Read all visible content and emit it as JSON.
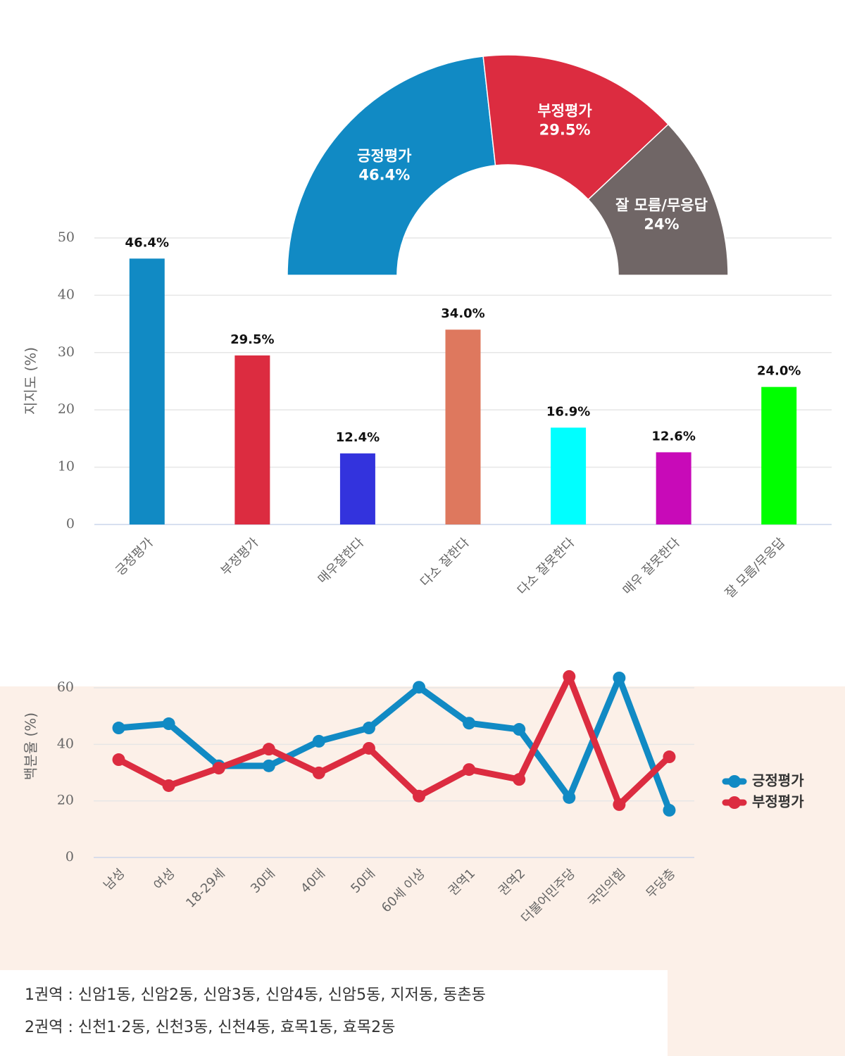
{
  "chart_data": [
    {
      "type": "pie",
      "categories": [
        "긍정평가",
        "부정평가",
        "잘 모름/무응답"
      ],
      "values": [
        46.4,
        29.5,
        24
      ],
      "value_labels": [
        "46.4%",
        "29.5%",
        "24%"
      ],
      "colors": [
        "#118ac4",
        "#dc2c40",
        "#706666"
      ]
    },
    {
      "type": "bar",
      "y_label": "지지도 (%)",
      "categories": [
        "긍정평가",
        "부정평가",
        "매우잘한다",
        "다소 잘한다",
        "다소 잘못한다",
        "매우 잘못한다",
        "잘 모름/무응답"
      ],
      "values": [
        46.4,
        29.5,
        12.4,
        34.0,
        16.9,
        12.6,
        24.0
      ],
      "value_labels": [
        "46.4%",
        "29.5%",
        "12.4%",
        "34.0%",
        "16.9%",
        "12.6%",
        "24.0%"
      ],
      "colors": [
        "#118ac4",
        "#dc2c40",
        "#3333dd",
        "#de785e",
        "#00ffff",
        "#c80ab8",
        "#00ff00"
      ],
      "ylim": [
        0,
        50
      ],
      "yticks": [
        0,
        10,
        20,
        30,
        40,
        50
      ],
      "grid": true
    },
    {
      "type": "line",
      "y_label": "백분율 (%)",
      "categories": [
        "남성",
        "여성",
        "18-29세",
        "30대",
        "40대",
        "50대",
        "60세 이상",
        "권역1",
        "권역2",
        "더불어민주당",
        "국민의힘",
        "무당층"
      ],
      "series": [
        {
          "name": "긍정평가",
          "color": "#118ac4",
          "values": [
            45.8,
            47.3,
            32.4,
            32.4,
            41.1,
            45.8,
            60.2,
            47.5,
            45.3,
            21.2,
            63.5,
            16.7
          ]
        },
        {
          "name": "부정평가",
          "color": "#dc2c40",
          "values": [
            34.6,
            25.4,
            31.6,
            38.3,
            29.9,
            38.6,
            21.7,
            31.1,
            27.6,
            64.0,
            18.7,
            35.6
          ]
        }
      ],
      "ylim": [
        0,
        60
      ],
      "yticks": [
        0,
        20,
        40,
        60
      ],
      "grid": true,
      "legend": "right"
    }
  ],
  "notes": [
    "1권역 : 신암1동, 신암2동, 신암3동, 신암4동, 신암5동, 지저동, 동촌동",
    "2권역 : 신천1·2동, 신천3동, 신천4동, 효목1동, 효목2동"
  ]
}
